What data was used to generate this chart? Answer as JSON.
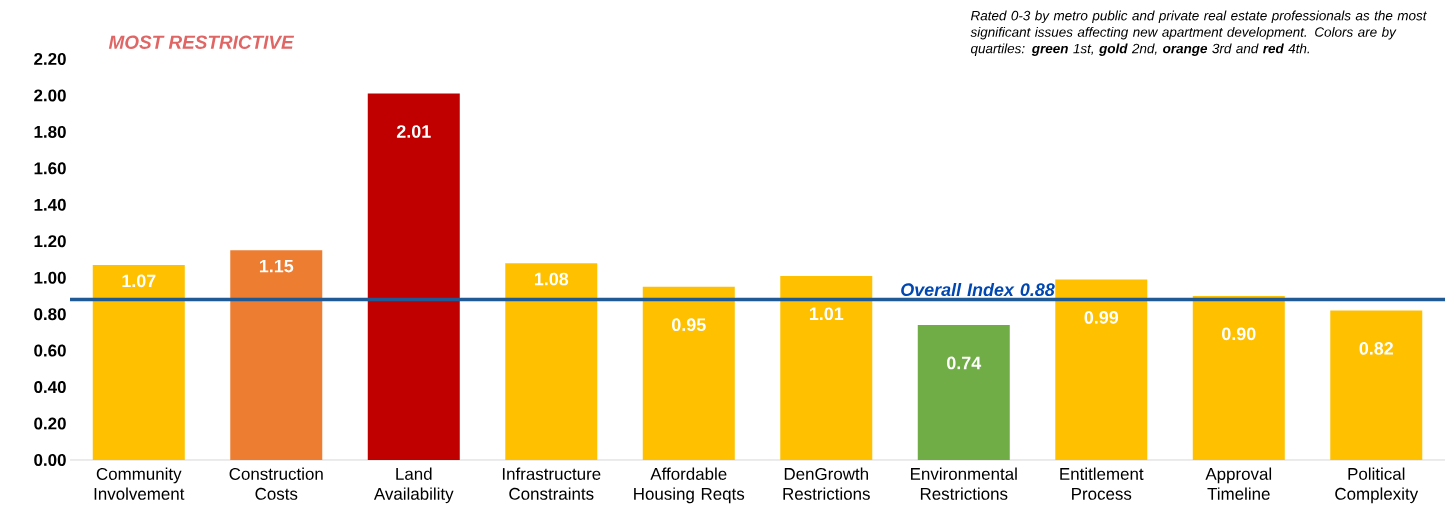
{
  "chart_data": {
    "type": "bar",
    "categories": [
      "Community Involvement",
      "Construction Costs",
      "Land Availability",
      "Infrastructure Constraints",
      "Affordable Housing Reqts",
      "DenGrowth Restrictions",
      "Environmental Restrictions",
      "Entitlement Process",
      "Approval Timeline",
      "Political Complexity"
    ],
    "values": [
      1.07,
      1.15,
      2.01,
      1.08,
      0.95,
      1.01,
      0.74,
      0.99,
      0.9,
      0.82
    ],
    "colors": [
      "#ffc000",
      "#ed7d31",
      "#c00000",
      "#ffc000",
      "#ffc000",
      "#ffc000",
      "#70ad47",
      "#ffc000",
      "#ffc000",
      "#ffc000"
    ],
    "value_labels": [
      "1.07",
      "1.15",
      "2.01",
      "1.08",
      "0.95",
      "1.01",
      "0.74",
      "0.99",
      "0.90",
      "0.82"
    ],
    "ylim": [
      0,
      2.2
    ],
    "yticks": [
      {
        "value": 0,
        "label": "0.00"
      },
      {
        "value": 0.2,
        "label": "0.20"
      },
      {
        "value": 0.4,
        "label": "0.40"
      },
      {
        "value": 0.6,
        "label": "0.60"
      },
      {
        "value": 0.8,
        "label": "0.80"
      },
      {
        "value": 1.0,
        "label": "1.00"
      },
      {
        "value": 1.2,
        "label": "1.20"
      },
      {
        "value": 1.4,
        "label": "1.40"
      },
      {
        "value": 1.6,
        "label": "1.60"
      },
      {
        "value": 1.8,
        "label": "1.80"
      },
      {
        "value": 2.0,
        "label": "2.00"
      },
      {
        "value": 2.2,
        "label": "2.20"
      }
    ],
    "ref_lines": [
      {
        "axis": "y",
        "value": 0.88,
        "label": "Overall Index 0.88",
        "color": "#1f5a96"
      }
    ],
    "annotations": [
      "MOST RESTRICTIVE",
      "Rated 0-3 by metro public and private real estate professionals as the most significant issues affecting new apartment development.  Colors are by quartiles: **green** 1st, **gold** 2nd, **orange** 3rd and **red** 4th."
    ],
    "grid": false
  }
}
